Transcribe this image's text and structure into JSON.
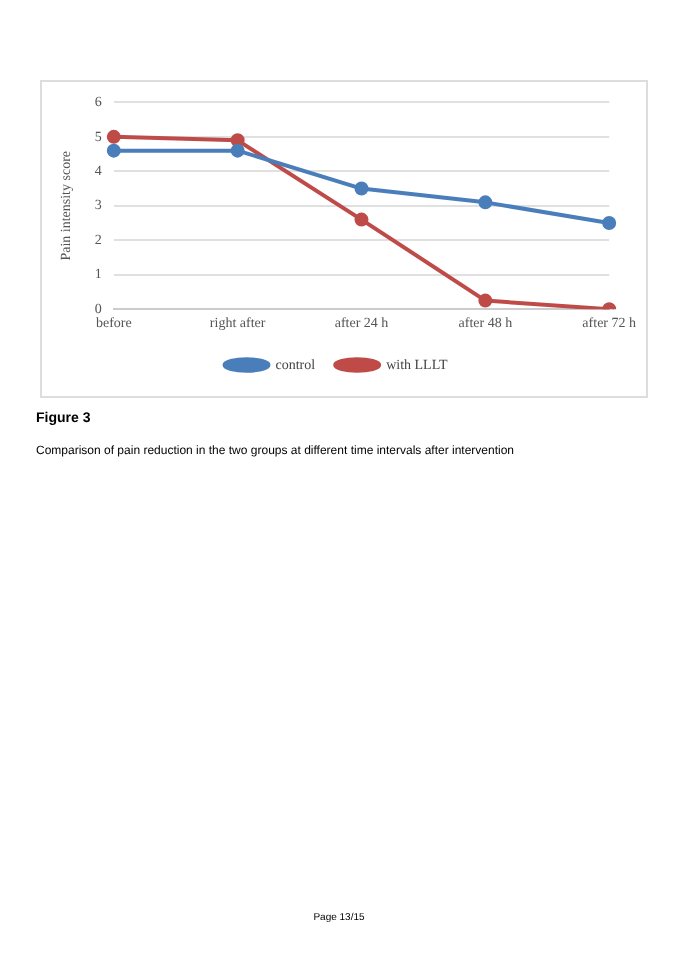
{
  "chart_data": {
    "type": "line",
    "title": "Figure 3",
    "subtitle": "Comparison of pain reduction in the two groups at different time intervals after intervention",
    "ylabel": "Pain intensity score",
    "categories": [
      "before",
      "right after",
      "after 24 h",
      "after 48 h",
      "after 72 h"
    ],
    "series": [
      {
        "name": "control",
        "color": "#4a7ebb",
        "values": [
          4.6,
          4.6,
          3.5,
          3.1,
          2.5
        ]
      },
      {
        "name": "with LLLT",
        "color": "#be4b48",
        "values": [
          5.0,
          4.9,
          2.6,
          0.25,
          0.0
        ]
      }
    ],
    "ylim": [
      0,
      6
    ],
    "yticks": [
      0,
      1,
      2,
      3,
      4,
      5,
      6
    ],
    "grid": "y",
    "legend": "bottom",
    "marker": "circle",
    "line_style": "solid",
    "annotations": [
      "Page 13/15"
    ]
  }
}
